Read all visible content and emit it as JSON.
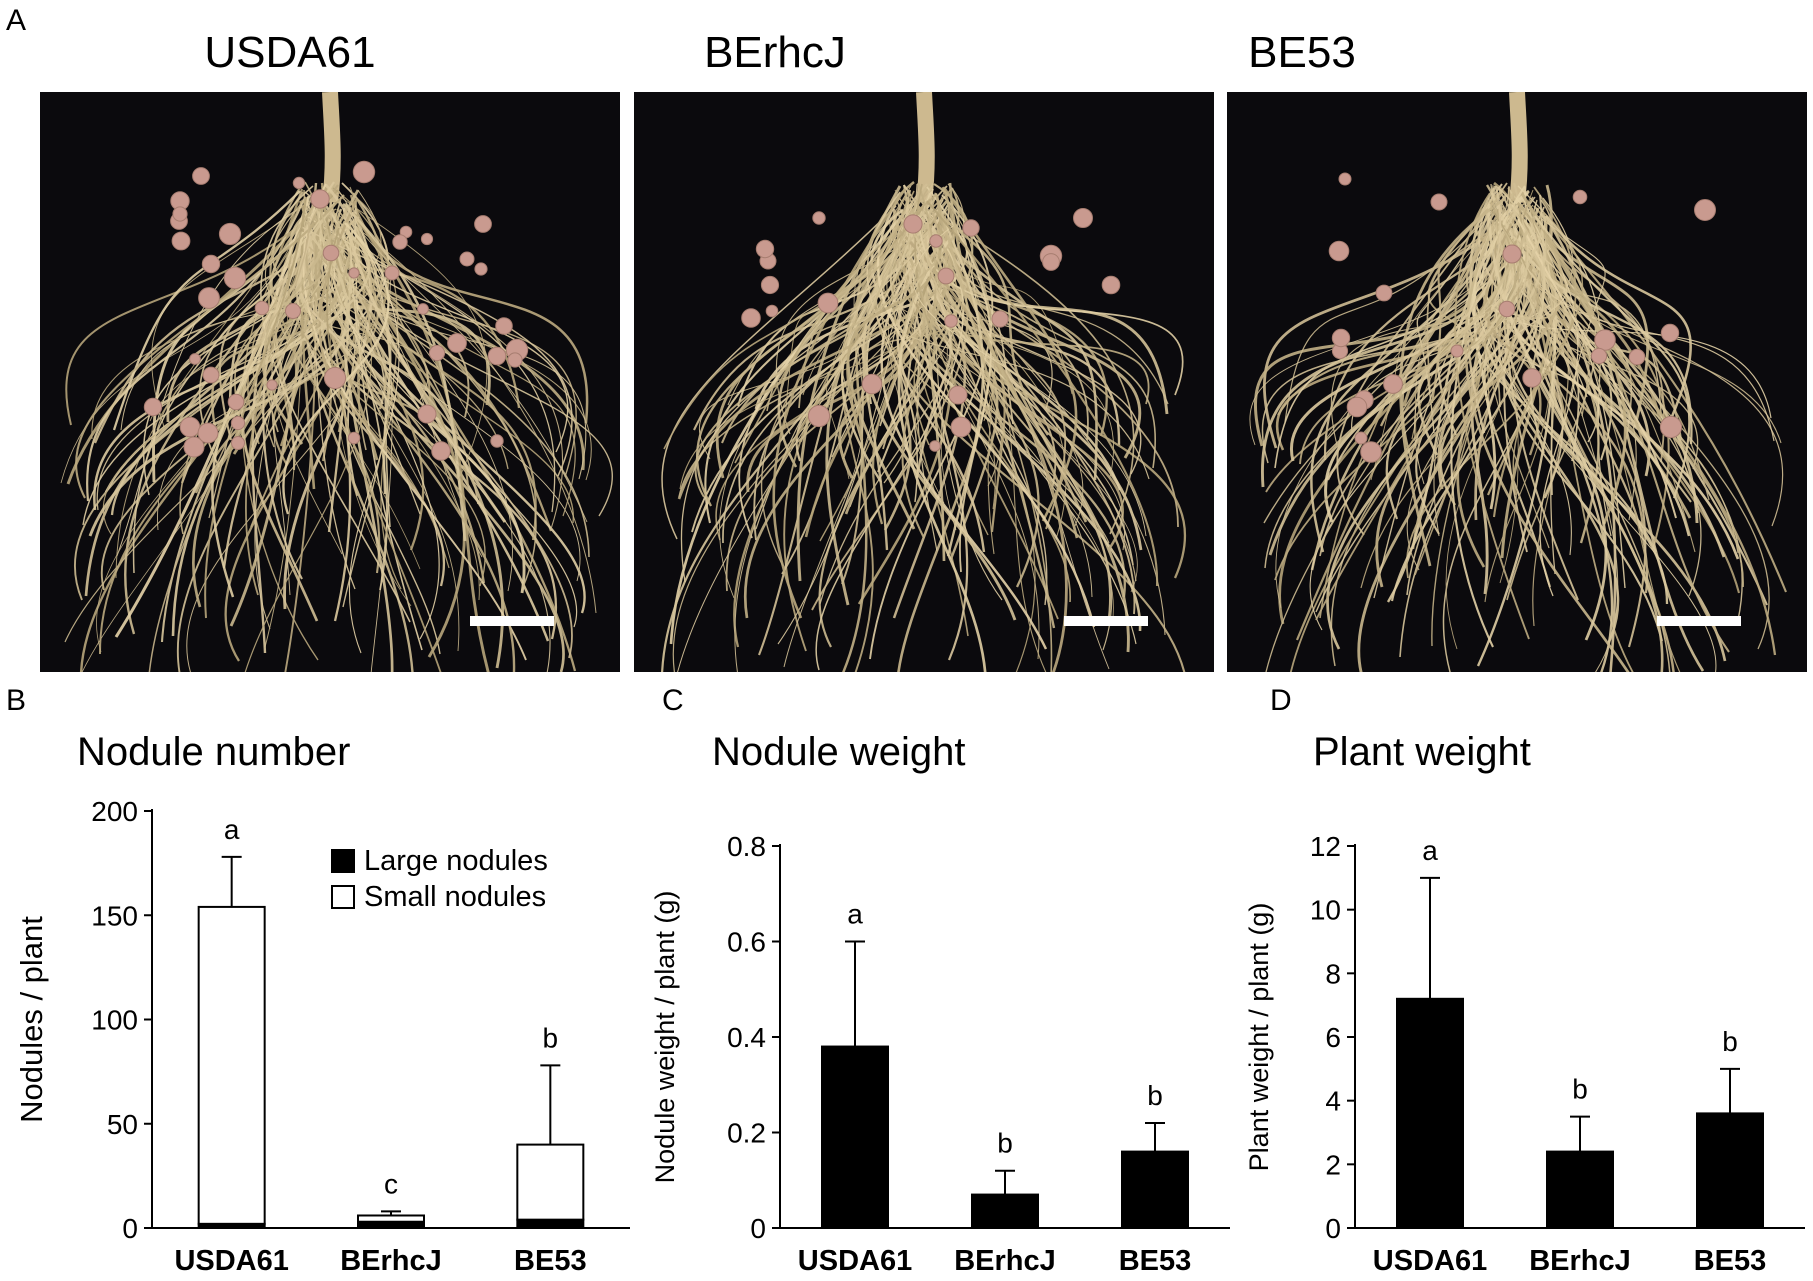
{
  "panels": {
    "a": {
      "letter": "A",
      "titles": [
        "USDA61",
        "BErhcJ",
        "BE53"
      ]
    },
    "b": {
      "letter": "B"
    },
    "c": {
      "letter": "C"
    },
    "d": {
      "letter": "D"
    }
  },
  "colors": {
    "photo_background": "#0b0a0d",
    "root": "#d8c29a",
    "nodule": "#c99a8f",
    "scale_bar": "#ffffff",
    "bar_fill": "#000000"
  },
  "chart_data": [
    {
      "panel": "B",
      "type": "bar",
      "stacked": true,
      "title": "Nodule number",
      "xlabel": "",
      "ylabel": "Nodules / plant",
      "categories": [
        "USDA61",
        "BErhcJ",
        "BE53"
      ],
      "ylim": [
        0,
        200
      ],
      "yticks": [
        0,
        50,
        100,
        150,
        200
      ],
      "series": [
        {
          "name": "Large nodules",
          "color": "#000000",
          "values": [
            2,
            3,
            4
          ],
          "error": [
            4,
            1,
            4
          ]
        },
        {
          "name": "Small nodules",
          "color": "#ffffff",
          "values": [
            152,
            3,
            36
          ],
          "error": [
            24,
            2,
            38
          ]
        }
      ],
      "letters": [
        "a",
        "c",
        "b"
      ],
      "legend": {
        "position": "top-right"
      }
    },
    {
      "panel": "C",
      "type": "bar",
      "title": "Nodule weight",
      "xlabel": "",
      "ylabel": "Nodule weight / plant (g)",
      "categories": [
        "USDA61",
        "BErhcJ",
        "BE53"
      ],
      "ylim": [
        0,
        0.8
      ],
      "yticks": [
        0,
        0.2,
        0.4,
        0.6,
        0.8
      ],
      "series": [
        {
          "color": "#000000",
          "values": [
            0.38,
            0.07,
            0.16
          ],
          "error": [
            0.22,
            0.05,
            0.06
          ]
        }
      ],
      "letters": [
        "a",
        "b",
        "b"
      ]
    },
    {
      "panel": "D",
      "type": "bar",
      "title": "Plant weight",
      "xlabel": "",
      "ylabel": "Plant weight / plant (g)",
      "categories": [
        "USDA61",
        "BErhcJ",
        "BE53"
      ],
      "ylim": [
        0,
        12
      ],
      "yticks": [
        0,
        2,
        4,
        6,
        8,
        10,
        12
      ],
      "series": [
        {
          "color": "#000000",
          "values": [
            7.2,
            2.4,
            3.6
          ],
          "error": [
            3.8,
            1.1,
            1.4
          ]
        }
      ],
      "letters": [
        "a",
        "b",
        "b"
      ]
    }
  ]
}
